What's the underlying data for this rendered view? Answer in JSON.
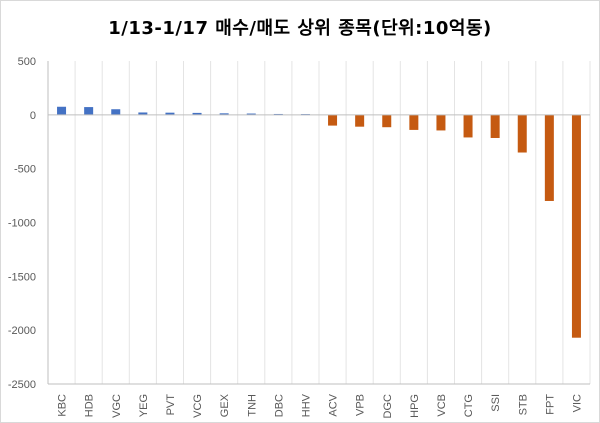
{
  "chart_data": {
    "type": "bar",
    "title": "1/13-1/17 매수/매도 상위 종목(단위:10억동)",
    "xlabel": "",
    "ylabel": "",
    "ylim": [
      -2500,
      500
    ],
    "yticks": [
      500,
      0,
      -500,
      -1000,
      -1500,
      -2000,
      -2500
    ],
    "ytick_labels": [
      "500",
      "0",
      "-500",
      "-1000",
      "-1500",
      "-2000",
      "-2500"
    ],
    "grid": "vertical",
    "legend": "none",
    "categories": [
      "KBC",
      "HDB",
      "VGC",
      "YEG",
      "PVT",
      "VCG",
      "GEX",
      "TNH",
      "DBC",
      "HHV",
      "ACV",
      "VPB",
      "DGC",
      "HPG",
      "VCB",
      "CTG",
      "SSI",
      "STB",
      "FPT",
      "VIC"
    ],
    "values": [
      75,
      72,
      52,
      22,
      20,
      18,
      14,
      12,
      8,
      7,
      -100,
      -110,
      -115,
      -140,
      -145,
      -210,
      -215,
      -350,
      -800,
      -2070
    ],
    "colors": {
      "positive": "#4472c4",
      "negative": "#c55a11",
      "grid": "#e4e4e4",
      "axis": "#bfbfbf"
    }
  }
}
